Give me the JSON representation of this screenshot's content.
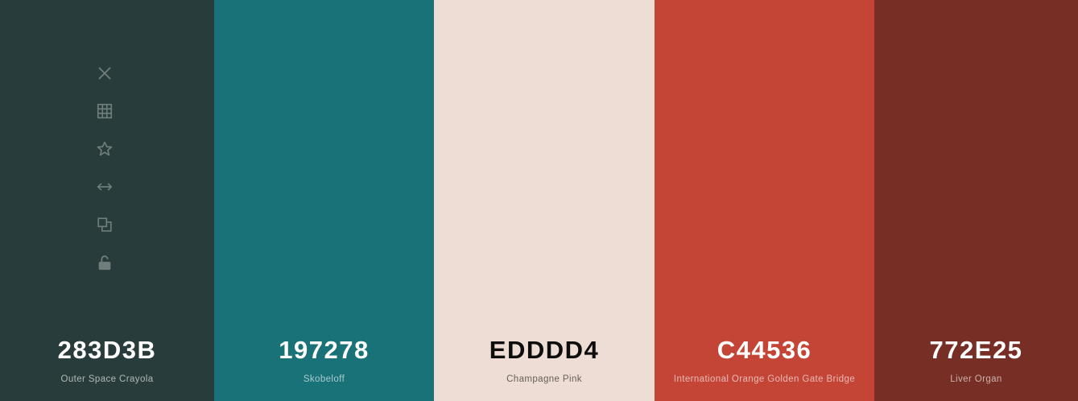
{
  "toolbar": {
    "icons": [
      "close-icon",
      "grid-icon",
      "star-icon",
      "arrows-horizontal-icon",
      "copy-icon",
      "unlock-icon"
    ],
    "icon_color": "#6f7d7b"
  },
  "swatches": [
    {
      "hex": "283D3B",
      "name": "Outer Space Crayola",
      "color": "#283D3B"
    },
    {
      "hex": "197278",
      "name": "Skobeloff",
      "color": "#197278"
    },
    {
      "hex": "EDDDD4",
      "name": "Champagne Pink",
      "color": "#EDDDD4"
    },
    {
      "hex": "C44536",
      "name": "International Orange Golden Gate Bridge",
      "color": "#C44536"
    },
    {
      "hex": "772E25",
      "name": "Liver Organ",
      "color": "#772E25"
    }
  ]
}
